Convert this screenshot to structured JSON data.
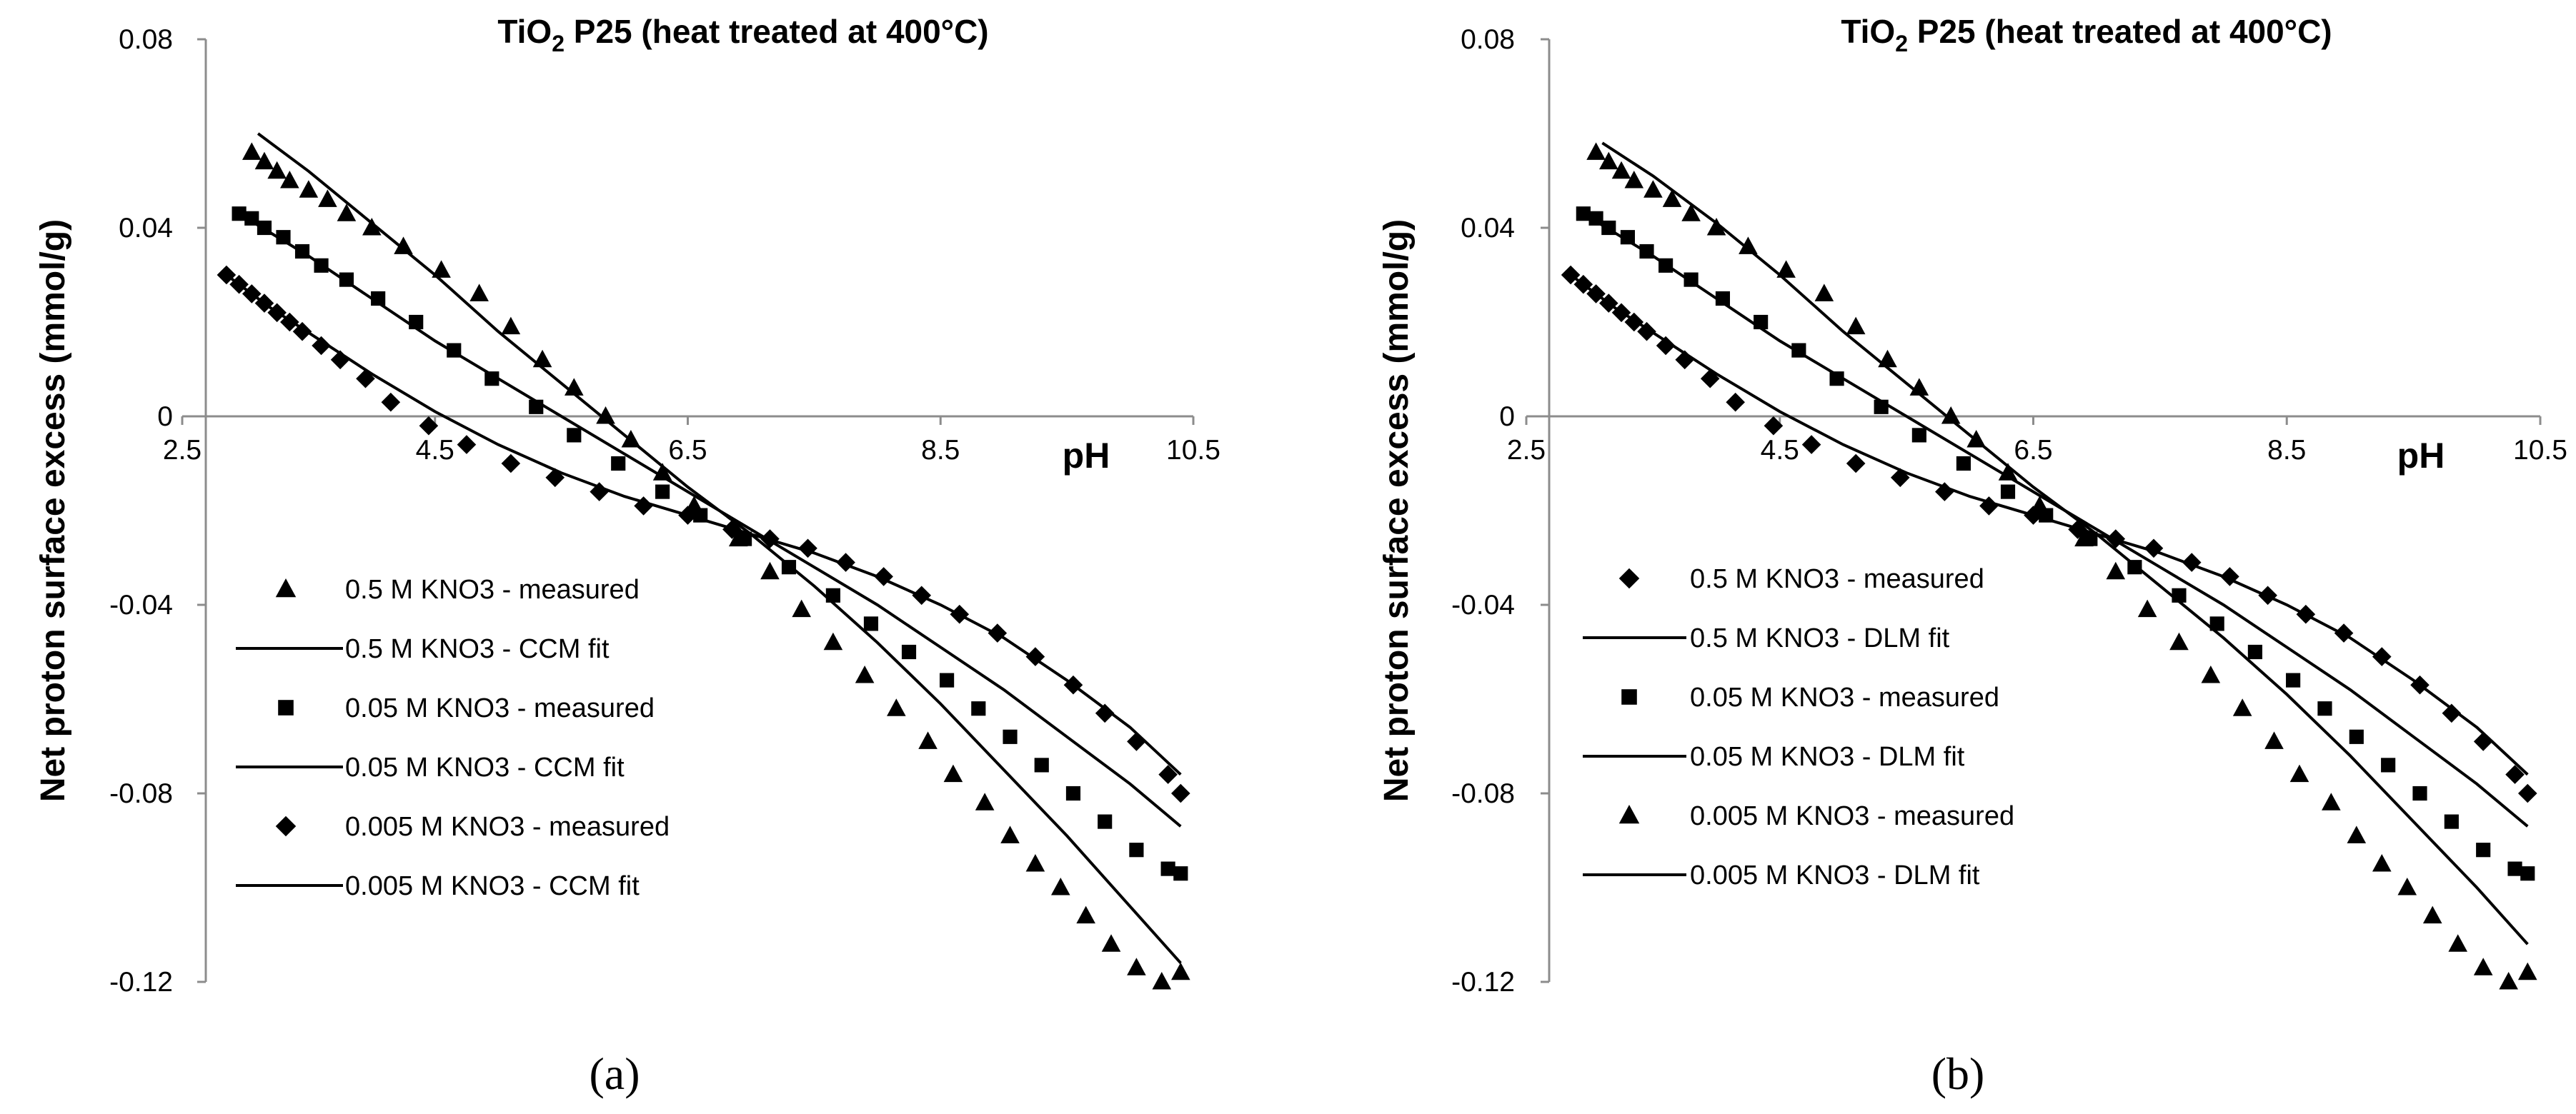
{
  "chart_data": [
    {
      "type": "scatter",
      "panel_label": "(a)",
      "title": {
        "main": "TiO",
        "sub": "2",
        "rest": " P25 (heat treated at 400°C)"
      },
      "xlabel": "pH",
      "ylabel": "Net proton surface excess (mmol/g)",
      "xlim": [
        2.5,
        10.5
      ],
      "ylim": [
        -0.12,
        0.08
      ],
      "xticks": [
        "2.5",
        "4.5",
        "6.5",
        "8.5",
        "10.5"
      ],
      "yticks": [
        "0.08",
        "0.04",
        "0",
        "-0.04",
        "-0.08",
        "-0.12"
      ],
      "legend": [
        {
          "label": "0.5 M KNO3 - measured",
          "kind": "triangle"
        },
        {
          "label": "0.5 M KNO3 - CCM fit",
          "kind": "line"
        },
        {
          "label": "0.05 M KNO3 - measured",
          "kind": "square"
        },
        {
          "label": "0.05 M KNO3 - CCM fit",
          "kind": "line"
        },
        {
          "label": "0.005 M KNO3 - measured",
          "kind": "diamond"
        },
        {
          "label": "0.005 M KNO3 - CCM fit",
          "kind": "line"
        }
      ],
      "series": [
        {
          "name": "0.5 M KNO3 - measured",
          "marker": "triangle",
          "x": [
            3.05,
            3.15,
            3.25,
            3.35,
            3.5,
            3.65,
            3.8,
            4.0,
            4.25,
            4.55,
            4.85,
            5.1,
            5.35,
            5.6,
            5.85,
            6.05,
            6.3,
            6.55,
            6.9,
            7.15,
            7.4,
            7.65,
            7.9,
            8.15,
            8.4,
            8.6,
            8.85,
            9.05,
            9.25,
            9.45,
            9.65,
            9.85,
            10.05,
            10.25,
            10.4
          ],
          "y": [
            0.056,
            0.054,
            0.052,
            0.05,
            0.048,
            0.046,
            0.043,
            0.04,
            0.036,
            0.031,
            0.026,
            0.019,
            0.012,
            0.006,
            0.0,
            -0.005,
            -0.012,
            -0.019,
            -0.026,
            -0.033,
            -0.041,
            -0.048,
            -0.055,
            -0.062,
            -0.069,
            -0.076,
            -0.082,
            -0.089,
            -0.095,
            -0.1,
            -0.106,
            -0.112,
            -0.117,
            -0.12,
            -0.118
          ]
        },
        {
          "name": "0.5 M KNO3 - CCM fit",
          "marker": "line",
          "x": [
            3.1,
            3.5,
            4.0,
            4.5,
            5.0,
            5.5,
            6.0,
            6.5,
            7.0,
            7.5,
            8.0,
            8.5,
            9.0,
            9.5,
            10.0,
            10.4
          ],
          "y": [
            0.06,
            0.052,
            0.041,
            0.03,
            0.018,
            0.007,
            -0.004,
            -0.015,
            -0.025,
            -0.036,
            -0.048,
            -0.061,
            -0.075,
            -0.089,
            -0.104,
            -0.116
          ]
        },
        {
          "name": "0.05 M KNO3 - measured",
          "marker": "square",
          "x": [
            2.95,
            3.05,
            3.15,
            3.3,
            3.45,
            3.6,
            3.8,
            4.05,
            4.35,
            4.65,
            4.95,
            5.3,
            5.6,
            5.95,
            6.3,
            6.6,
            6.95,
            7.3,
            7.65,
            7.95,
            8.25,
            8.55,
            8.8,
            9.05,
            9.3,
            9.55,
            9.8,
            10.05,
            10.3,
            10.4
          ],
          "y": [
            0.043,
            0.042,
            0.04,
            0.038,
            0.035,
            0.032,
            0.029,
            0.025,
            0.02,
            0.014,
            0.008,
            0.002,
            -0.004,
            -0.01,
            -0.016,
            -0.021,
            -0.026,
            -0.032,
            -0.038,
            -0.044,
            -0.05,
            -0.056,
            -0.062,
            -0.068,
            -0.074,
            -0.08,
            -0.086,
            -0.092,
            -0.096,
            -0.097
          ]
        },
        {
          "name": "0.05 M KNO3 - CCM fit",
          "marker": "line",
          "x": [
            2.95,
            3.5,
            4.0,
            4.5,
            5.0,
            5.5,
            6.0,
            6.5,
            7.0,
            7.5,
            8.0,
            8.5,
            9.0,
            9.5,
            10.0,
            10.4
          ],
          "y": [
            0.043,
            0.034,
            0.025,
            0.016,
            0.008,
            0.0,
            -0.008,
            -0.016,
            -0.024,
            -0.032,
            -0.04,
            -0.049,
            -0.058,
            -0.068,
            -0.078,
            -0.087
          ]
        },
        {
          "name": "0.005 M KNO3 - measured",
          "marker": "diamond",
          "x": [
            2.85,
            2.95,
            3.05,
            3.15,
            3.25,
            3.35,
            3.45,
            3.6,
            3.75,
            3.95,
            4.15,
            4.45,
            4.75,
            5.1,
            5.45,
            5.8,
            6.15,
            6.5,
            6.85,
            7.15,
            7.45,
            7.75,
            8.05,
            8.35,
            8.65,
            8.95,
            9.25,
            9.55,
            9.8,
            10.05,
            10.3,
            10.4
          ],
          "y": [
            0.03,
            0.028,
            0.026,
            0.024,
            0.022,
            0.02,
            0.018,
            0.015,
            0.012,
            0.008,
            0.003,
            -0.002,
            -0.006,
            -0.01,
            -0.013,
            -0.016,
            -0.019,
            -0.021,
            -0.024,
            -0.026,
            -0.028,
            -0.031,
            -0.034,
            -0.038,
            -0.042,
            -0.046,
            -0.051,
            -0.057,
            -0.063,
            -0.069,
            -0.076,
            -0.08
          ]
        },
        {
          "name": "0.005 M KNO3 - CCM fit",
          "marker": "line",
          "x": [
            2.85,
            3.2,
            3.6,
            4.0,
            4.5,
            5.0,
            5.5,
            6.0,
            6.5,
            7.0,
            7.5,
            8.0,
            8.5,
            9.0,
            9.5,
            10.0,
            10.4
          ],
          "y": [
            0.03,
            0.023,
            0.016,
            0.009,
            0.001,
            -0.006,
            -0.012,
            -0.017,
            -0.021,
            -0.025,
            -0.029,
            -0.034,
            -0.04,
            -0.047,
            -0.056,
            -0.066,
            -0.076
          ]
        }
      ]
    },
    {
      "type": "scatter",
      "panel_label": "(b)",
      "title": {
        "main": "TiO",
        "sub": "2",
        "rest": " P25 (heat treated at 400°C)"
      },
      "xlabel": "pH",
      "ylabel": "Net proton surface excess (mmol/g)",
      "xlim": [
        2.5,
        10.5
      ],
      "ylim": [
        -0.12,
        0.08
      ],
      "xticks": [
        "2.5",
        "4.5",
        "6.5",
        "8.5",
        "10.5"
      ],
      "yticks": [
        "0.08",
        "0.04",
        "0",
        "-0.04",
        "-0.08",
        "-0.12"
      ],
      "legend": [
        {
          "label": "0.5 M KNO3 - measured",
          "kind": "diamond"
        },
        {
          "label": "0.5 M KNO3 - DLM fit",
          "kind": "line"
        },
        {
          "label": "0.05 M KNO3 - measured",
          "kind": "square"
        },
        {
          "label": "0.05 M KNO3 - DLM fit",
          "kind": "line"
        },
        {
          "label": "0.005 M KNO3 - measured",
          "kind": "triangle"
        },
        {
          "label": "0.005 M KNO3 - DLM fit",
          "kind": "line"
        }
      ],
      "series": [
        {
          "name": "0.5 M KNO3 - measured",
          "marker": "diamond",
          "x": [
            2.85,
            2.95,
            3.05,
            3.15,
            3.25,
            3.35,
            3.45,
            3.6,
            3.75,
            3.95,
            4.15,
            4.45,
            4.75,
            5.1,
            5.45,
            5.8,
            6.15,
            6.5,
            6.85,
            7.15,
            7.45,
            7.75,
            8.05,
            8.35,
            8.65,
            8.95,
            9.25,
            9.55,
            9.8,
            10.05,
            10.3,
            10.4
          ],
          "y": [
            0.03,
            0.028,
            0.026,
            0.024,
            0.022,
            0.02,
            0.018,
            0.015,
            0.012,
            0.008,
            0.003,
            -0.002,
            -0.006,
            -0.01,
            -0.013,
            -0.016,
            -0.019,
            -0.021,
            -0.024,
            -0.026,
            -0.028,
            -0.031,
            -0.034,
            -0.038,
            -0.042,
            -0.046,
            -0.051,
            -0.057,
            -0.063,
            -0.069,
            -0.076,
            -0.08
          ]
        },
        {
          "name": "0.5 M KNO3 - DLM fit",
          "marker": "line",
          "x": [
            2.85,
            3.2,
            3.6,
            4.0,
            4.5,
            5.0,
            5.5,
            6.0,
            6.5,
            7.0,
            7.5,
            8.0,
            8.5,
            9.0,
            9.5,
            10.0,
            10.4
          ],
          "y": [
            0.03,
            0.023,
            0.016,
            0.009,
            0.001,
            -0.006,
            -0.012,
            -0.017,
            -0.021,
            -0.025,
            -0.029,
            -0.034,
            -0.04,
            -0.047,
            -0.056,
            -0.066,
            -0.076
          ]
        },
        {
          "name": "0.05 M KNO3 - measured",
          "marker": "square",
          "x": [
            2.95,
            3.05,
            3.15,
            3.3,
            3.45,
            3.6,
            3.8,
            4.05,
            4.35,
            4.65,
            4.95,
            5.3,
            5.6,
            5.95,
            6.3,
            6.6,
            6.95,
            7.3,
            7.65,
            7.95,
            8.25,
            8.55,
            8.8,
            9.05,
            9.3,
            9.55,
            9.8,
            10.05,
            10.3,
            10.4
          ],
          "y": [
            0.043,
            0.042,
            0.04,
            0.038,
            0.035,
            0.032,
            0.029,
            0.025,
            0.02,
            0.014,
            0.008,
            0.002,
            -0.004,
            -0.01,
            -0.016,
            -0.021,
            -0.026,
            -0.032,
            -0.038,
            -0.044,
            -0.05,
            -0.056,
            -0.062,
            -0.068,
            -0.074,
            -0.08,
            -0.086,
            -0.092,
            -0.096,
            -0.097
          ]
        },
        {
          "name": "0.05 M KNO3 - DLM fit",
          "marker": "line",
          "x": [
            2.95,
            3.5,
            4.0,
            4.5,
            5.0,
            5.5,
            6.0,
            6.5,
            7.0,
            7.5,
            8.0,
            8.5,
            9.0,
            9.5,
            10.0,
            10.4
          ],
          "y": [
            0.043,
            0.034,
            0.025,
            0.016,
            0.008,
            0.0,
            -0.008,
            -0.016,
            -0.024,
            -0.032,
            -0.04,
            -0.049,
            -0.058,
            -0.068,
            -0.078,
            -0.087
          ]
        },
        {
          "name": "0.005 M KNO3 - measured",
          "marker": "triangle",
          "x": [
            3.05,
            3.15,
            3.25,
            3.35,
            3.5,
            3.65,
            3.8,
            4.0,
            4.25,
            4.55,
            4.85,
            5.1,
            5.35,
            5.6,
            5.85,
            6.05,
            6.3,
            6.55,
            6.9,
            7.15,
            7.4,
            7.65,
            7.9,
            8.15,
            8.4,
            8.6,
            8.85,
            9.05,
            9.25,
            9.45,
            9.65,
            9.85,
            10.05,
            10.25,
            10.4
          ],
          "y": [
            0.056,
            0.054,
            0.052,
            0.05,
            0.048,
            0.046,
            0.043,
            0.04,
            0.036,
            0.031,
            0.026,
            0.019,
            0.012,
            0.006,
            0.0,
            -0.005,
            -0.012,
            -0.019,
            -0.026,
            -0.033,
            -0.041,
            -0.048,
            -0.055,
            -0.062,
            -0.069,
            -0.076,
            -0.082,
            -0.089,
            -0.095,
            -0.1,
            -0.106,
            -0.112,
            -0.117,
            -0.12,
            -0.118
          ]
        },
        {
          "name": "0.005 M KNO3 - DLM fit",
          "marker": "line",
          "x": [
            3.1,
            3.5,
            4.0,
            4.5,
            5.0,
            5.5,
            6.0,
            6.5,
            7.0,
            7.5,
            8.0,
            8.5,
            9.0,
            9.5,
            10.0,
            10.4
          ],
          "y": [
            0.058,
            0.051,
            0.041,
            0.03,
            0.018,
            0.007,
            -0.004,
            -0.015,
            -0.025,
            -0.036,
            -0.047,
            -0.059,
            -0.072,
            -0.086,
            -0.1,
            -0.112
          ]
        }
      ]
    }
  ]
}
